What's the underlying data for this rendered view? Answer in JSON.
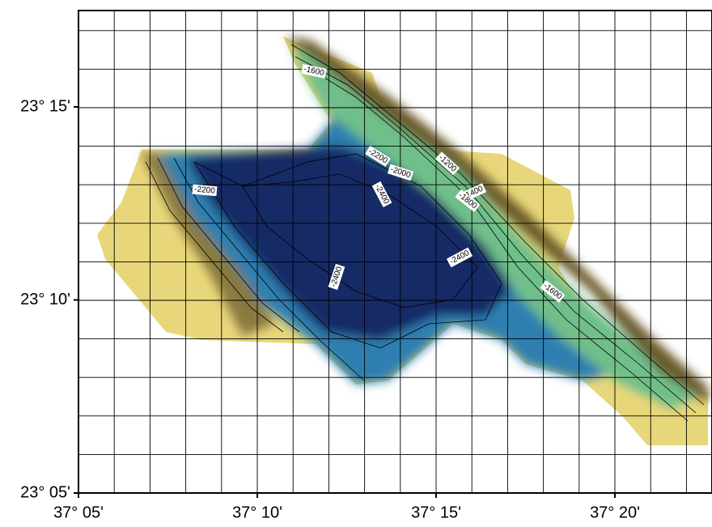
{
  "y_labels": [
    "23° 15'",
    "23° 10'",
    "23° 05'"
  ],
  "x_labels": [
    "37° 05'",
    "37° 10'",
    "37° 15'",
    "37° 20'"
  ],
  "contour_labels": [
    "-1600",
    "-2200",
    "-2200",
    "-2000",
    "-1200",
    "-1400",
    "-1800",
    "-2400",
    "-2400",
    "-2400",
    "-1600"
  ]
}
